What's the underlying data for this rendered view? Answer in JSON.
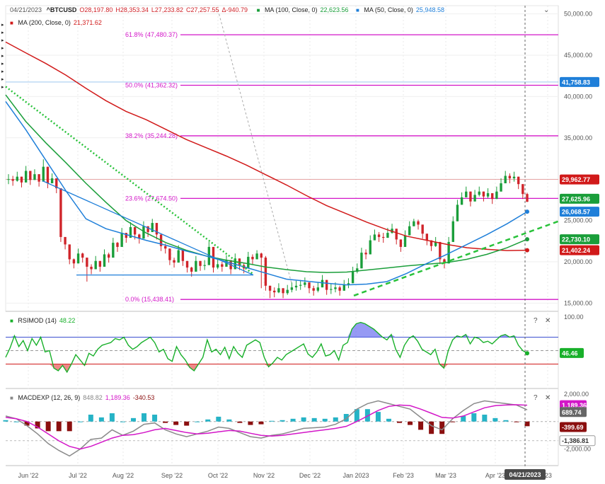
{
  "header": {
    "date": "04/21/2023",
    "symbol": "^BTCUSD",
    "open": "O28,197.80",
    "high": "H28,353.34",
    "low": "L27,233.82",
    "close": "C27,257.55",
    "change": "Δ-940.79",
    "ma100_label": "MA (100, Close, 0)",
    "ma100_value": "22,623.56",
    "ma50_label": "MA (50, Close, 0)",
    "ma50_value": "25,948.58",
    "ma200_label": "MA (200, Close, 0)",
    "ma200_value": "21,371.62"
  },
  "rsi_header": {
    "label": "RSIMOD (14)",
    "value": "48.22"
  },
  "macd_header": {
    "label": "MACDEXP (12, 26, 9)",
    "v1": "848.82",
    "v2": "1,189.36",
    "v3": "-340.53"
  },
  "crosshair_date": "04/21/2023",
  "colors": {
    "price_up": "#1a9e3a",
    "price_down": "#d0242a",
    "ma200": "#d11a1a",
    "ma100": "#1a9e3a",
    "ma50": "#1f7fd9",
    "fib": "#d316c8",
    "rsi": "#18b02a",
    "macd_hist_pos": "#26b3c6",
    "macd_hist_neg": "#8b0f0f",
    "macd_line": "#8a8a8a",
    "signal_line": "#d316c8"
  },
  "chart_data": [
    {
      "type": "candlestick",
      "title": "^BTCUSD",
      "x_labels": [
        "Jun '22",
        "Jul '22",
        "Aug '22",
        "Sep '22",
        "Oct '22",
        "Nov '22",
        "Dec '22",
        "Jan 2023",
        "Feb '23",
        "Mar '23",
        "Apr '23",
        "'23"
      ],
      "ylim": [
        14000,
        51000
      ],
      "y_ticks": [
        15000,
        20000,
        25000,
        30000,
        35000,
        40000,
        45000,
        50000
      ],
      "y_tick_labels": [
        "15,000.00",
        "20,000.00",
        "25,000.00",
        "30,000.00",
        "35,000.00",
        "40,000.00",
        "45,000.00",
        "50,000.00"
      ],
      "close_series": [
        30000,
        29800,
        30300,
        29600,
        31000,
        29900,
        30600,
        29700,
        31500,
        29500,
        30100,
        28900,
        23000,
        22100,
        20300,
        19800,
        21000,
        20500,
        19400,
        19100,
        20100,
        19400,
        20900,
        20500,
        22300,
        21800,
        23500,
        22900,
        24200,
        23300,
        22800,
        24300,
        23600,
        24700,
        23300,
        21900,
        21600,
        20200,
        19900,
        21400,
        20100,
        19300,
        18800,
        20100,
        19500,
        19600,
        21800,
        19300,
        19700,
        19400,
        20200,
        19100,
        20400,
        19600,
        19200,
        20600,
        20300,
        21000,
        20500,
        17100,
        16500,
        16300,
        16800,
        16200,
        16600,
        16900,
        17100,
        17200,
        17500,
        16800,
        16500,
        16900,
        17800,
        16600,
        16700,
        16900,
        16500,
        17200,
        17400,
        18800,
        19200,
        21100,
        20900,
        22600,
        23300,
        23000,
        22900,
        23500,
        24000,
        22700,
        21800,
        23200,
        24300,
        24900,
        24500,
        23400,
        22600,
        21900,
        22400,
        20300,
        19800,
        22400,
        24900,
        26900,
        27800,
        28500,
        27300,
        28100,
        28500,
        27900,
        28300,
        27600,
        28500,
        29500,
        30400,
        30100,
        30300,
        29400,
        28200,
        27260
      ],
      "high_series": [
        30600,
        30400,
        30900,
        30200,
        31600,
        30500,
        31200,
        30300,
        32400,
        30100,
        30700,
        29500,
        28200,
        22700,
        20900,
        20400,
        21600,
        21100,
        20000,
        19700,
        20700,
        20000,
        21500,
        21100,
        22900,
        22400,
        24100,
        23500,
        24800,
        23900,
        23400,
        24900,
        24200,
        25200,
        23900,
        22500,
        22200,
        20800,
        20500,
        22000,
        20700,
        19900,
        19400,
        20700,
        20100,
        20200,
        22400,
        19900,
        20300,
        20000,
        20800,
        19700,
        21000,
        20200,
        19800,
        21200,
        20900,
        21400,
        21100,
        20700,
        17100,
        16900,
        17400,
        16800,
        17200,
        17500,
        17700,
        17800,
        18100,
        17400,
        17100,
        17500,
        18400,
        17200,
        17300,
        17500,
        17100,
        17800,
        18000,
        19400,
        19800,
        21700,
        21500,
        23200,
        23900,
        23600,
        23500,
        24100,
        24600,
        23300,
        22400,
        23800,
        24900,
        25200,
        25100,
        24000,
        23200,
        22500,
        23000,
        20900,
        20400,
        23000,
        25500,
        27500,
        28400,
        29100,
        27900,
        28700,
        29100,
        28500,
        28900,
        28200,
        29100,
        30100,
        31000,
        30700,
        30900,
        30000,
        28800,
        28353
      ],
      "low_series": [
        29400,
        29200,
        29700,
        29000,
        30400,
        29300,
        30000,
        29100,
        30900,
        28900,
        29500,
        28300,
        22400,
        21500,
        19700,
        19200,
        20400,
        19900,
        17600,
        18500,
        19500,
        18800,
        20300,
        19900,
        21700,
        21200,
        22900,
        22300,
        23600,
        22700,
        22200,
        23700,
        23000,
        24100,
        22700,
        21300,
        21000,
        19600,
        19300,
        20800,
        19500,
        18700,
        18200,
        19500,
        18900,
        19000,
        21200,
        18700,
        19100,
        18800,
        19600,
        18500,
        19800,
        19000,
        18600,
        20000,
        19700,
        20400,
        16800,
        16500,
        15600,
        15700,
        16200,
        15600,
        16000,
        16300,
        16500,
        16600,
        16900,
        16200,
        15900,
        16300,
        17200,
        16000,
        16100,
        16300,
        15900,
        16600,
        16800,
        18200,
        18600,
        20500,
        20300,
        22000,
        22700,
        22400,
        22300,
        22900,
        23400,
        22100,
        21200,
        22600,
        23700,
        24300,
        23900,
        22800,
        22000,
        21300,
        21800,
        19700,
        19200,
        21800,
        24300,
        26300,
        27200,
        27900,
        26700,
        27500,
        27900,
        27300,
        27700,
        27000,
        27900,
        28900,
        29800,
        29500,
        29700,
        28800,
        27600,
        27234
      ],
      "ma200_series": [
        46600,
        45300,
        44000,
        42600,
        41000,
        39500,
        38200,
        37200,
        36000,
        34800,
        33800,
        32800,
        31700,
        30500,
        29300,
        28000,
        26800,
        25800,
        24800,
        23900,
        23100,
        22600,
        22100,
        21700,
        21500,
        21360,
        21402
      ],
      "ma100_series": [
        40200,
        37000,
        34400,
        32000,
        29500,
        27200,
        25000,
        23500,
        22300,
        21400,
        20700,
        20200,
        19800,
        19350,
        19050,
        18800,
        18700,
        18750,
        19000,
        19250,
        19500,
        19700,
        19900,
        20300,
        20900,
        21700,
        22730
      ],
      "ma50_series": [
        39400,
        36000,
        32300,
        28600,
        25200,
        24000,
        23300,
        22600,
        22000,
        21300,
        20700,
        20000,
        19300,
        18600,
        17900,
        17650,
        17400,
        17200,
        17300,
        17600,
        18600,
        19800,
        20900,
        22100,
        23300,
        24600,
        26068
      ],
      "fib_levels": [
        {
          "label": "61.8% (47,480.37)",
          "value": 47480.37
        },
        {
          "label": "50.0% (41,362.32)",
          "value": 41362.32
        },
        {
          "label": "38.2% (35,244.28)",
          "value": 35244.28
        },
        {
          "label": "23.6% (27,674.50)",
          "value": 27674.5
        },
        {
          "label": "0.0% (15,438.41)",
          "value": 15438.41
        }
      ],
      "horizontal_lines": [
        {
          "value": 41758.83
        },
        {
          "value": 29962.77
        }
      ],
      "last_value_labels": [
        {
          "text": "41,758.83",
          "value": 41758.83,
          "color": "#1f7fd9"
        },
        {
          "text": "29,962.77",
          "value": 29962.77,
          "color": "#d11a1a"
        },
        {
          "text": "27,625.96",
          "value": 27625.96,
          "color": "#1a9e3a"
        },
        {
          "text": "26,068.57",
          "value": 26068.57,
          "color": "#1f7fd9"
        },
        {
          "text": "22,730.10",
          "value": 22730.1,
          "color": "#1a9e3a"
        },
        {
          "text": "21,402.24",
          "value": 21402.24,
          "color": "#d11a1a"
        }
      ]
    },
    {
      "type": "line",
      "title": "RSIMOD (14)",
      "ylim": [
        0,
        100
      ],
      "y_ticks": [
        0,
        50,
        100
      ],
      "y_tick_labels": [
        "0",
        "50",
        "100.00"
      ],
      "levels": [
        70,
        30
      ],
      "last_label": "46.46",
      "values": [
        40,
        54,
        72,
        56,
        65,
        50,
        68,
        58,
        70,
        48,
        50,
        24,
        20,
        28,
        18,
        30,
        44,
        36,
        28,
        46,
        42,
        52,
        58,
        60,
        62,
        68,
        66,
        70,
        58,
        52,
        56,
        62,
        66,
        70,
        62,
        48,
        52,
        38,
        34,
        56,
        44,
        36,
        25,
        20,
        30,
        40,
        66,
        48,
        52,
        44,
        55,
        38,
        56,
        46,
        40,
        58,
        62,
        66,
        62,
        40,
        26,
        32,
        40,
        36,
        44,
        48,
        52,
        56,
        60,
        45,
        40,
        48,
        60,
        42,
        44,
        50,
        36,
        58,
        62,
        82,
        90,
        92,
        90,
        86,
        82,
        76,
        70,
        66,
        74,
        52,
        40,
        58,
        68,
        72,
        64,
        52,
        48,
        44,
        52,
        30,
        24,
        50,
        66,
        72,
        70,
        74,
        60,
        70,
        68,
        62,
        64,
        60,
        66,
        72,
        74,
        70,
        72,
        58,
        50,
        46
      ]
    },
    {
      "type": "bar",
      "title": "MACDEXP (12, 26, 9)",
      "ylim": [
        -3200,
        2400
      ],
      "y_ticks": [
        2000,
        -2000
      ],
      "y_tick_labels": [
        "2,000.00",
        "-2,000.00"
      ],
      "last_labels": [
        {
          "text": "848.82",
          "value": 848.82,
          "color": "#888888"
        },
        {
          "text": "1,189.36",
          "value": 1189.36,
          "color": "#d316c8"
        },
        {
          "text": "689.74",
          "value": 689.74,
          "color": "#666666"
        },
        {
          "text": "-399.69",
          "value": -399.69,
          "color": "#8b0f0f"
        },
        {
          "text": "-1,386.81",
          "value": -1386.81,
          "color": "#ffffff"
        }
      ],
      "macd_series": [
        400,
        200,
        -300,
        -900,
        -1600,
        -2100,
        -2500,
        -2000,
        -1300,
        -1200,
        -600,
        -1000,
        -700,
        -200,
        -100,
        -600,
        -900,
        -1100,
        -900,
        -700,
        -400,
        -500,
        -800,
        -1100,
        -1200,
        -1000,
        -900,
        -700,
        -500,
        -450,
        -400,
        -200,
        200,
        900,
        1300,
        1500,
        1300,
        1100,
        900,
        300,
        -300,
        -600,
        200,
        800,
        1300,
        1500,
        1400,
        1300,
        1200,
        848
      ],
      "signal_series": [
        300,
        200,
        0,
        -400,
        -900,
        -1400,
        -1800,
        -2000,
        -1800,
        -1500,
        -1200,
        -1000,
        -950,
        -800,
        -600,
        -500,
        -650,
        -800,
        -900,
        -850,
        -750,
        -650,
        -700,
        -850,
        -1000,
        -1050,
        -1000,
        -900,
        -800,
        -700,
        -600,
        -500,
        -350,
        0,
        400,
        800,
        1100,
        1200,
        1150,
        900,
        600,
        300,
        250,
        400,
        700,
        1000,
        1150,
        1200,
        1220,
        1189
      ],
      "hist_series": [
        100,
        0,
        -300,
        -500,
        -700,
        -700,
        -700,
        0,
        500,
        300,
        600,
        0,
        250,
        600,
        500,
        -100,
        -250,
        -300,
        0,
        150,
        350,
        150,
        -100,
        -250,
        -200,
        50,
        100,
        200,
        300,
        250,
        200,
        300,
        550,
        900,
        900,
        700,
        200,
        -100,
        -250,
        -600,
        -900,
        -900,
        -50,
        400,
        600,
        500,
        250,
        100,
        -20,
        -340
      ]
    }
  ]
}
